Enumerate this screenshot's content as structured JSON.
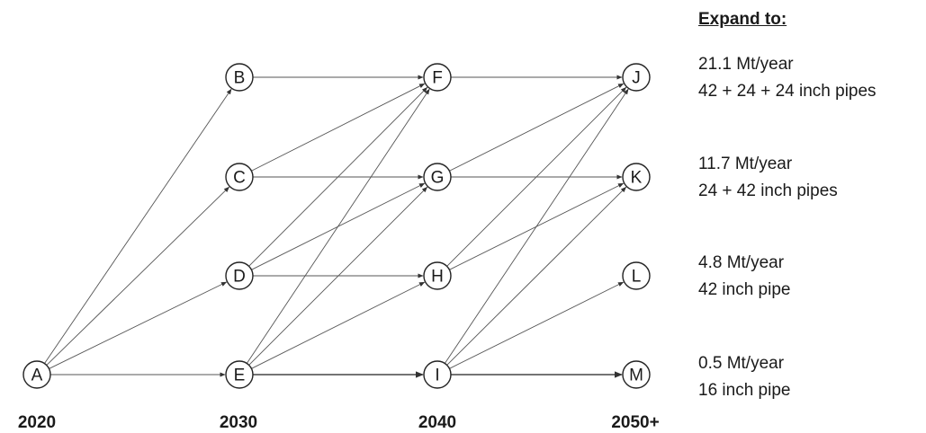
{
  "heading": "Expand to:",
  "years": [
    "2020",
    "2030",
    "2040",
    "2050+"
  ],
  "nodes": [
    "A",
    "B",
    "C",
    "D",
    "E",
    "F",
    "G",
    "H",
    "I",
    "J",
    "K",
    "L",
    "M"
  ],
  "edges": [
    [
      "A",
      "B"
    ],
    [
      "A",
      "C"
    ],
    [
      "A",
      "D"
    ],
    [
      "A",
      "E"
    ],
    [
      "B",
      "F"
    ],
    [
      "C",
      "F"
    ],
    [
      "C",
      "G"
    ],
    [
      "D",
      "F"
    ],
    [
      "D",
      "G"
    ],
    [
      "D",
      "H"
    ],
    [
      "E",
      "F"
    ],
    [
      "E",
      "G"
    ],
    [
      "E",
      "H"
    ],
    [
      "E",
      "I"
    ],
    [
      "F",
      "J"
    ],
    [
      "G",
      "J"
    ],
    [
      "G",
      "K"
    ],
    [
      "H",
      "J"
    ],
    [
      "H",
      "K"
    ],
    [
      "I",
      "J"
    ],
    [
      "I",
      "K"
    ],
    [
      "I",
      "L"
    ],
    [
      "I",
      "M"
    ]
  ],
  "annotations": [
    {
      "line1": "21.1 Mt/year",
      "line2": "42 + 24 + 24 inch pipes"
    },
    {
      "line1": "11.7 Mt/year",
      "line2": "24 + 42 inch pipes"
    },
    {
      "line1": "4.8 Mt/year",
      "line2": "42 inch pipe"
    },
    {
      "line1": "0.5 Mt/year",
      "line2": "16 inch pipe"
    }
  ]
}
